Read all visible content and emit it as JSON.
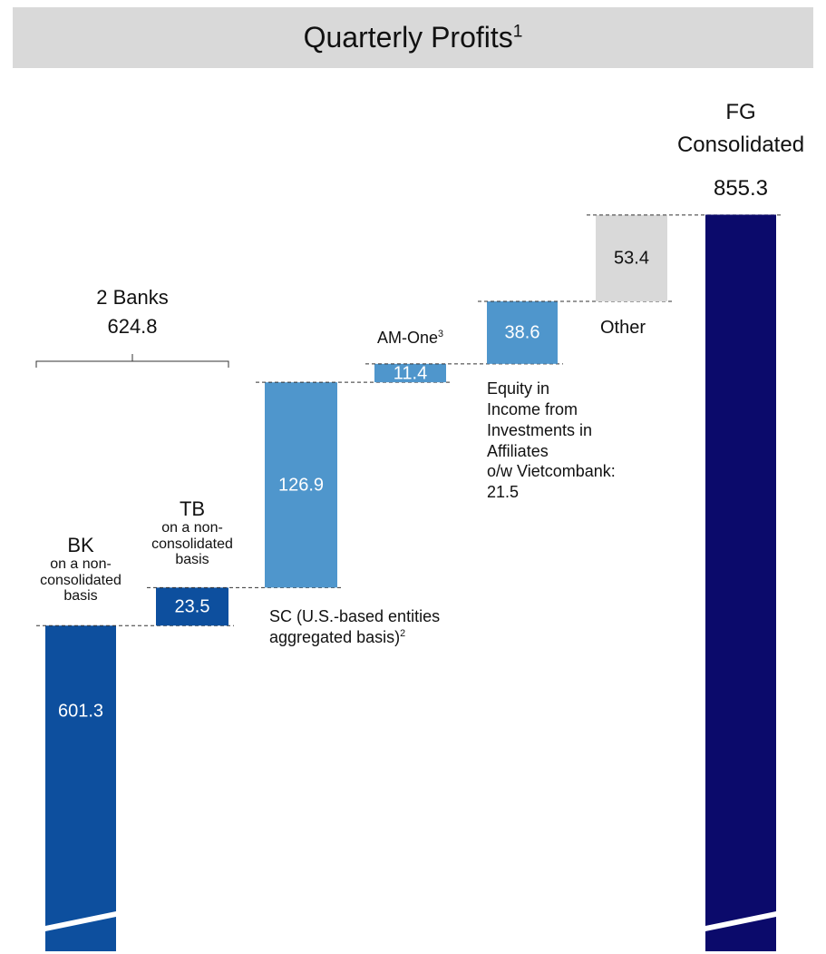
{
  "chart_data": {
    "type": "waterfall",
    "title": "Quarterly Profits",
    "title_footnote": "1",
    "categories": [
      "BK",
      "TB",
      "SC (U.S.-based entities aggregated basis)",
      "AM-One",
      "Equity in Income from Investments in Affiliates",
      "Other",
      "FG Consolidated"
    ],
    "category_footnotes": [
      null,
      null,
      "2",
      "3",
      null,
      null,
      null
    ],
    "category_notes": [
      "on a non-consolidated basis",
      "on a non-consolidated basis",
      null,
      null,
      "o/w Vietcombank: 21.5",
      null,
      null
    ],
    "measures": [
      "absolute",
      "relative",
      "relative",
      "relative",
      "relative",
      "relative",
      "total"
    ],
    "values": [
      601.3,
      23.5,
      126.9,
      11.4,
      38.6,
      53.4,
      855.3
    ],
    "colors": [
      "#0d4f9e",
      "#0d4f9e",
      "#4f96cc",
      "#4f96cc",
      "#4f96cc",
      "#d9d9d9",
      "#0b0a6b"
    ],
    "bracket": {
      "label": "2 Banks",
      "value": 624.8
    },
    "ylim": [
      400,
      988
    ]
  }
}
